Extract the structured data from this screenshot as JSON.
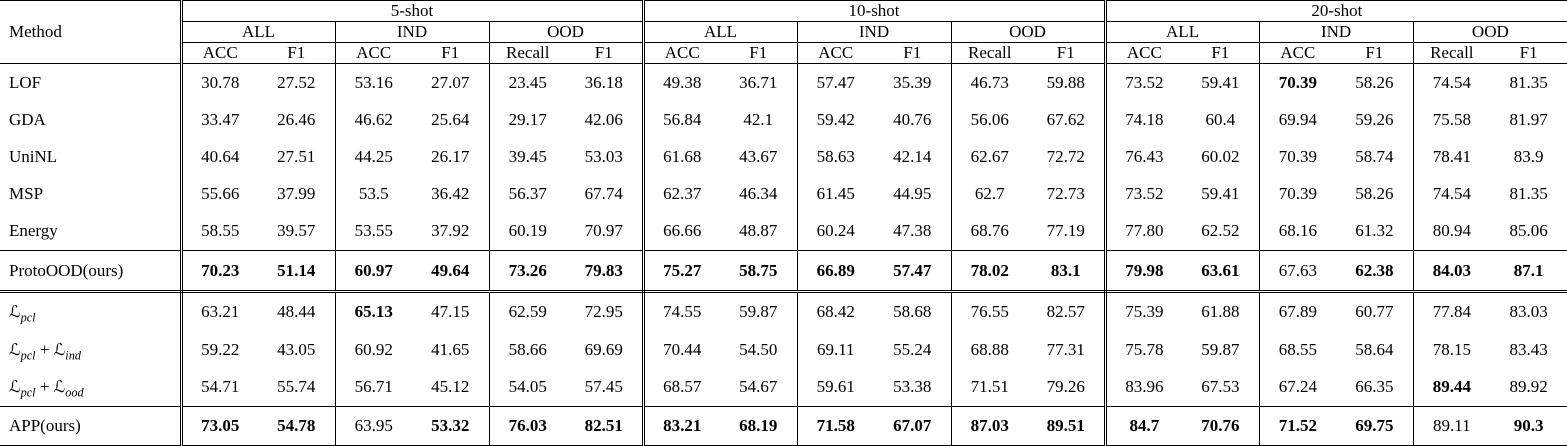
{
  "table": {
    "method_header": "Method",
    "shot_groups": [
      {
        "label": "5-shot"
      },
      {
        "label": "10-shot"
      },
      {
        "label": "20-shot"
      }
    ],
    "subgroup_labels": [
      "ALL",
      "IND",
      "OOD"
    ],
    "metric_labels": [
      "ACC",
      "F1",
      "ACC",
      "F1",
      "Recall",
      "F1"
    ],
    "rows": [
      {
        "method": [
          {
            "text": "LOF"
          }
        ],
        "values": [
          "30.78",
          "27.52",
          "53.16",
          "27.07",
          "23.45",
          "36.18",
          "49.38",
          "36.71",
          "57.47",
          "35.39",
          "46.73",
          "59.88",
          "73.52",
          "59.41",
          "70.39",
          "58.26",
          "74.54",
          "81.35"
        ],
        "bold": [
          0,
          0,
          0,
          0,
          0,
          0,
          0,
          0,
          0,
          0,
          0,
          0,
          0,
          0,
          1,
          0,
          0,
          0
        ],
        "border_bottom": "none"
      },
      {
        "method": [
          {
            "text": "GDA"
          }
        ],
        "values": [
          "33.47",
          "26.46",
          "46.62",
          "25.64",
          "29.17",
          "42.06",
          "56.84",
          "42.1",
          "59.42",
          "40.76",
          "56.06",
          "67.62",
          "74.18",
          "60.4",
          "69.94",
          "59.26",
          "75.58",
          "81.97"
        ],
        "bold": [
          0,
          0,
          0,
          0,
          0,
          0,
          0,
          0,
          0,
          0,
          0,
          0,
          0,
          0,
          0,
          0,
          0,
          0
        ],
        "border_bottom": "none"
      },
      {
        "method": [
          {
            "text": "UniNL"
          }
        ],
        "values": [
          "40.64",
          "27.51",
          "44.25",
          "26.17",
          "39.45",
          "53.03",
          "61.68",
          "43.67",
          "58.63",
          "42.14",
          "62.67",
          "72.72",
          "76.43",
          "60.02",
          "70.39",
          "58.74",
          "78.41",
          "83.9"
        ],
        "bold": [
          0,
          0,
          0,
          0,
          0,
          0,
          0,
          0,
          0,
          0,
          0,
          0,
          0,
          0,
          0,
          0,
          0,
          0
        ],
        "border_bottom": "none"
      },
      {
        "method": [
          {
            "text": "MSP"
          }
        ],
        "values": [
          "55.66",
          "37.99",
          "53.5",
          "36.42",
          "56.37",
          "67.74",
          "62.37",
          "46.34",
          "61.45",
          "44.95",
          "62.7",
          "72.73",
          "73.52",
          "59.41",
          "70.39",
          "58.26",
          "74.54",
          "81.35"
        ],
        "bold": [
          0,
          0,
          0,
          0,
          0,
          0,
          0,
          0,
          0,
          0,
          0,
          0,
          0,
          0,
          0,
          0,
          0,
          0
        ],
        "border_bottom": "none"
      },
      {
        "method": [
          {
            "text": "Energy"
          }
        ],
        "values": [
          "58.55",
          "39.57",
          "53.55",
          "37.92",
          "60.19",
          "70.97",
          "66.66",
          "48.87",
          "60.24",
          "47.38",
          "68.76",
          "77.19",
          "77.80",
          "62.52",
          "68.16",
          "61.32",
          "80.94",
          "85.06"
        ],
        "bold": [
          0,
          0,
          0,
          0,
          0,
          0,
          0,
          0,
          0,
          0,
          0,
          0,
          0,
          0,
          0,
          0,
          0,
          0
        ],
        "border_bottom": "single"
      },
      {
        "method": [
          {
            "text": "ProtoOOD(ours)"
          }
        ],
        "values": [
          "70.23",
          "51.14",
          "60.97",
          "49.64",
          "73.26",
          "79.83",
          "75.27",
          "58.75",
          "66.89",
          "57.47",
          "78.02",
          "83.1",
          "79.98",
          "63.61",
          "67.63",
          "62.38",
          "84.03",
          "87.1"
        ],
        "bold": [
          1,
          1,
          1,
          1,
          1,
          1,
          1,
          1,
          1,
          1,
          1,
          1,
          1,
          1,
          0,
          1,
          1,
          1
        ],
        "border_bottom": "double"
      },
      {
        "method": [
          {
            "text": "ℒ",
            "cal": true
          },
          {
            "text": "pcl",
            "sub": true
          }
        ],
        "values": [
          "63.21",
          "48.44",
          "65.13",
          "47.15",
          "62.59",
          "72.95",
          "74.55",
          "59.87",
          "68.42",
          "58.68",
          "76.55",
          "82.57",
          "75.39",
          "61.88",
          "67.89",
          "60.77",
          "77.84",
          "83.03"
        ],
        "bold": [
          0,
          0,
          1,
          0,
          0,
          0,
          0,
          0,
          0,
          0,
          0,
          0,
          0,
          0,
          0,
          0,
          0,
          0
        ],
        "border_bottom": "none"
      },
      {
        "method": [
          {
            "text": "ℒ",
            "cal": true
          },
          {
            "text": "pcl",
            "sub": true
          },
          {
            "text": " + "
          },
          {
            "text": "ℒ",
            "cal": true
          },
          {
            "text": "ind",
            "sub": true
          }
        ],
        "values": [
          "59.22",
          "43.05",
          "60.92",
          "41.65",
          "58.66",
          "69.69",
          "70.44",
          "54.50",
          "69.11",
          "55.24",
          "68.88",
          "77.31",
          "75.78",
          "59.87",
          "68.55",
          "58.64",
          "78.15",
          "83.43"
        ],
        "bold": [
          0,
          0,
          0,
          0,
          0,
          0,
          0,
          0,
          0,
          0,
          0,
          0,
          0,
          0,
          0,
          0,
          0,
          0
        ],
        "border_bottom": "none"
      },
      {
        "method": [
          {
            "text": "ℒ",
            "cal": true
          },
          {
            "text": "pcl",
            "sub": true
          },
          {
            "text": " + "
          },
          {
            "text": "ℒ",
            "cal": true
          },
          {
            "text": "ood",
            "sub": true
          }
        ],
        "values": [
          "54.71",
          "55.74",
          "56.71",
          "45.12",
          "54.05",
          "57.45",
          "68.57",
          "54.67",
          "59.61",
          "53.38",
          "71.51",
          "79.26",
          "83.96",
          "67.53",
          "67.24",
          "66.35",
          "89.44",
          "89.92"
        ],
        "bold": [
          0,
          0,
          0,
          0,
          0,
          0,
          0,
          0,
          0,
          0,
          0,
          0,
          0,
          0,
          0,
          0,
          1,
          0
        ],
        "border_bottom": "single"
      },
      {
        "method": [
          {
            "text": "APP(ours)"
          }
        ],
        "values": [
          "73.05",
          "54.78",
          "63.95",
          "53.32",
          "76.03",
          "82.51",
          "83.21",
          "68.19",
          "71.58",
          "67.07",
          "87.03",
          "89.51",
          "84.7",
          "70.76",
          "71.52",
          "69.75",
          "89.11",
          "90.3"
        ],
        "bold": [
          1,
          1,
          0,
          1,
          1,
          1,
          1,
          1,
          1,
          1,
          1,
          1,
          1,
          1,
          1,
          1,
          0,
          1
        ],
        "border_bottom": "single"
      }
    ]
  }
}
